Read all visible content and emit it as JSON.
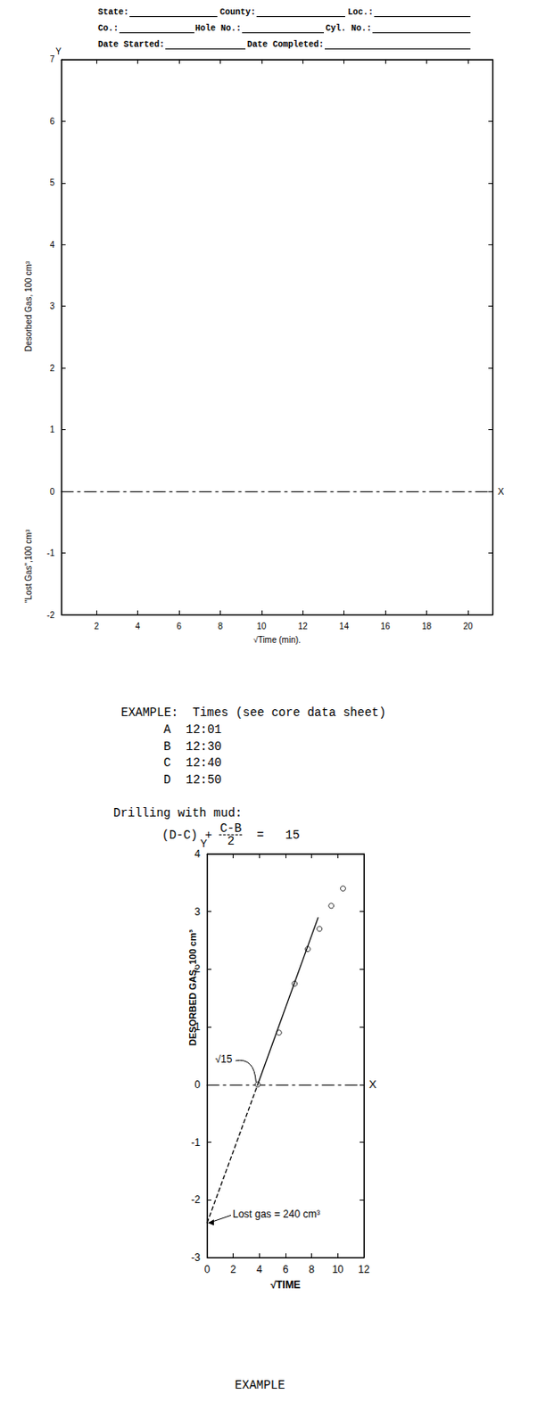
{
  "header_fields": [
    [
      "State:",
      "County:",
      "Loc.:"
    ],
    [
      "Co.:",
      "Hole No.:",
      "Cyl. No.:"
    ],
    [
      "Date Started:",
      "Date Completed:"
    ]
  ],
  "chart_data": [
    {
      "type": "line",
      "x_label": "√Time (min).",
      "y_label": "Desorbed Gas, 100 cm³",
      "y_label_lower": "\"Lost Gas\",100 cm³",
      "y_axis_name": "Y",
      "x_axis_name": "X",
      "xlim": [
        0.3,
        21.2
      ],
      "xticks": [
        2,
        4,
        6,
        8,
        10,
        12,
        14,
        16,
        18,
        20
      ],
      "ylim": [
        -2,
        7
      ],
      "yticks": [
        -2,
        -1,
        0,
        1,
        2,
        3,
        4,
        5,
        6,
        7
      ],
      "grid": false,
      "series": []
    },
    {
      "type": "line",
      "x_label": "√TIME",
      "y_label": "DESORBED GAS, 100 cm³",
      "y_axis_name": "Y",
      "x_axis_name": "X",
      "xlim": [
        0,
        12
      ],
      "xticks": [
        0,
        2,
        4,
        6,
        8,
        10,
        12
      ],
      "ylim": [
        -3,
        4
      ],
      "yticks": [
        -3,
        -2,
        -1,
        0,
        1,
        2,
        3,
        4
      ],
      "grid": false,
      "series": [
        {
          "type": "scatter",
          "marker": "circle",
          "color": "#000000",
          "x": [
            3.873,
            5.5,
            6.7,
            7.7,
            8.6,
            9.5,
            10.4
          ],
          "values": [
            0,
            0.9,
            1.75,
            2.35,
            2.7,
            3.1,
            3.4
          ]
        },
        {
          "type": "line",
          "line_style": "solid",
          "color": "#000000",
          "x": [
            3.873,
            8.5
          ],
          "values": [
            0,
            2.9
          ]
        },
        {
          "type": "line",
          "line_style": "dashed",
          "color": "#000000",
          "x": [
            0,
            3.873
          ],
          "values": [
            -2.4,
            0
          ]
        }
      ],
      "annotations": [
        {
          "text": "√15",
          "x": 3.873,
          "y": 0
        },
        {
          "text": "Lost gas = 240 cm³",
          "x": 0,
          "y": -2.4
        }
      ]
    }
  ],
  "example": {
    "heading": "EXAMPLE:  Times (see core data sheet)",
    "times": [
      {
        "label": "A",
        "time": "12:01"
      },
      {
        "label": "B",
        "time": "12:30"
      },
      {
        "label": "C",
        "time": "12:40"
      },
      {
        "label": "D",
        "time": "12:50"
      }
    ],
    "method": "Drilling with mud:",
    "formula": {
      "left": "(D-C) +",
      "numerator": "C-B",
      "denominator": "2",
      "equals": "=",
      "value": 15
    },
    "caption": "EXAMPLE"
  }
}
